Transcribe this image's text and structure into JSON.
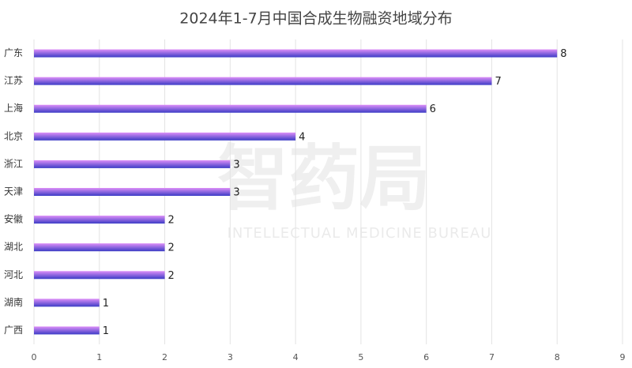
{
  "chart_data": {
    "type": "bar",
    "orientation": "horizontal",
    "title": "2024年1-7月中国合成生物融资地域分布",
    "categories": [
      "广东",
      "江苏",
      "上海",
      "北京",
      "浙江",
      "天津",
      "安徽",
      "湖北",
      "河北",
      "湖南",
      "广西"
    ],
    "values": [
      8,
      7,
      6,
      4,
      3,
      3,
      2,
      2,
      2,
      1,
      1
    ],
    "gradient": [
      "#dd8ff8",
      "#3c3cc6"
    ],
    "xlim": [
      0,
      9
    ],
    "xticks": [
      0,
      1,
      2,
      3,
      4,
      5,
      6,
      7,
      8,
      9
    ],
    "grid": true,
    "watermark": "智药局",
    "watermark_subtitle": "INTELLECTUAL MEDICINE BUREAU"
  }
}
